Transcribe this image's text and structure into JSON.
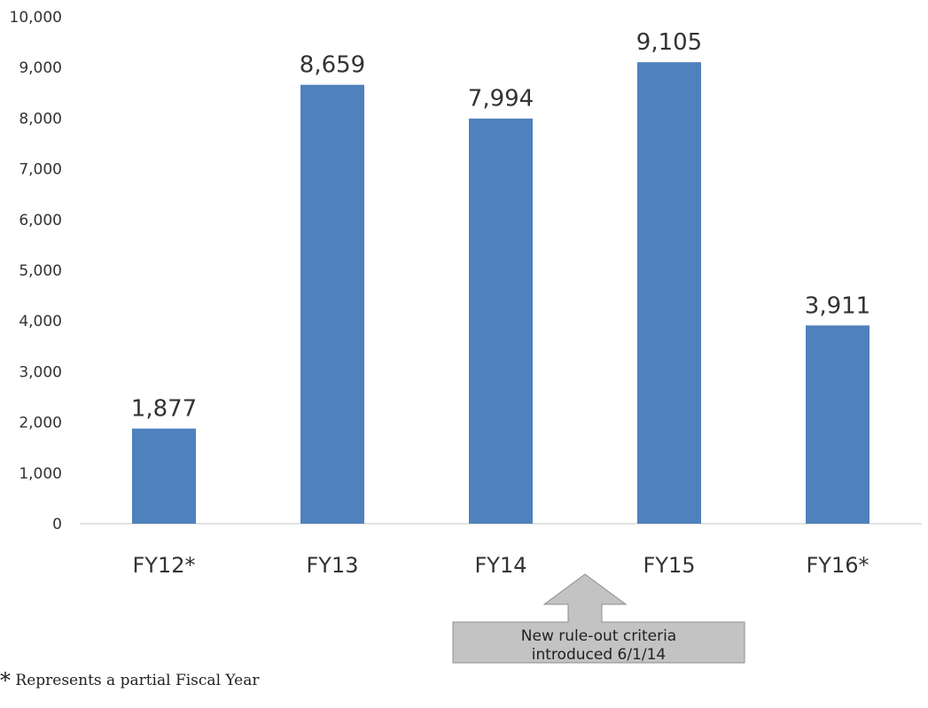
{
  "chart_data": {
    "type": "bar",
    "categories": [
      "FY12*",
      "FY13",
      "FY14",
      "FY15",
      "FY16*"
    ],
    "values": [
      1877,
      8659,
      7994,
      9105,
      3911
    ],
    "data_labels": [
      "1,877",
      "8,659",
      "7,994",
      "9,105",
      "3,911"
    ],
    "ylim": [
      0,
      10000
    ],
    "yticks": [
      0,
      1000,
      2000,
      3000,
      4000,
      5000,
      6000,
      7000,
      8000,
      9000,
      10000
    ],
    "ytick_labels": [
      "0",
      "1,000",
      "2,000",
      "3,000",
      "4,000",
      "5,000",
      "6,000",
      "7,000",
      "8,000",
      "9,000",
      "10,000"
    ],
    "bar_color": "#4f81bd",
    "grid": false,
    "annotation": {
      "lines": [
        "New rule-out criteria",
        "introduced 6/1/14"
      ],
      "fill": "#c3c3c3",
      "between": [
        "FY14",
        "FY15"
      ]
    }
  },
  "footnote": {
    "symbol": "*",
    "text": " Represents a partial Fiscal Year"
  }
}
